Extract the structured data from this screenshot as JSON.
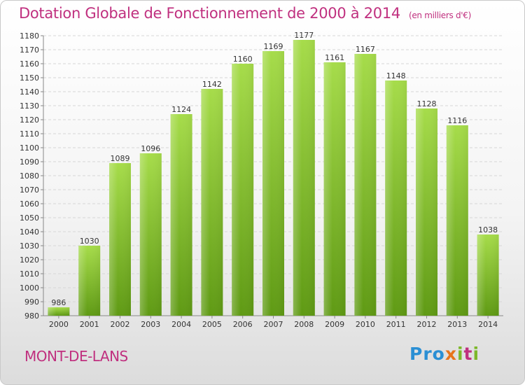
{
  "chart_data": {
    "type": "bar",
    "title": "Dotation Globale de Fonctionnement de 2000 à 2014",
    "unit": "(en milliers d'€)",
    "categories": [
      "2000",
      "2001",
      "2002",
      "2003",
      "2004",
      "2005",
      "2006",
      "2007",
      "2008",
      "2009",
      "2010",
      "2011",
      "2012",
      "2013",
      "2014"
    ],
    "values": [
      986,
      1030,
      1089,
      1096,
      1124,
      1142,
      1160,
      1169,
      1177,
      1161,
      1167,
      1148,
      1128,
      1116,
      1038
    ],
    "ylim": [
      980,
      1180
    ],
    "yticks": [
      980,
      990,
      1000,
      1010,
      1020,
      1030,
      1040,
      1050,
      1060,
      1070,
      1080,
      1090,
      1100,
      1110,
      1120,
      1130,
      1140,
      1150,
      1160,
      1170,
      1180
    ],
    "grid": true,
    "bar_color": "#7ec02d"
  },
  "commune": "MONT-DE-LANS",
  "logo": {
    "p1": "Pro",
    "p2": "x",
    "p3": "i",
    "p4": "t",
    "p5": "i"
  },
  "colors": {
    "title": "#c0307f",
    "bar_top": "#a6dc4a",
    "bar_bottom": "#5f9a14"
  }
}
